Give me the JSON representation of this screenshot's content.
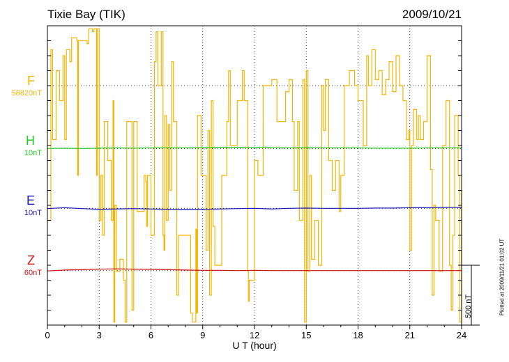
{
  "header": {
    "station": "Tixie Bay (TIK)",
    "date": "2009/10/21"
  },
  "components": [
    {
      "name": "F",
      "scale": "58820nT",
      "color": "#f5b400"
    },
    {
      "name": "H",
      "scale": "10nT",
      "color": "#22cc22"
    },
    {
      "name": "E",
      "scale": "10nT",
      "color": "#1a1ab8"
    },
    {
      "name": "Z",
      "scale": "60nT",
      "color": "#cc1111"
    }
  ],
  "scale_bar": "500 nT",
  "plotted_note": "Plotted at 2009/11/21 01:02 UT",
  "chart_data": {
    "type": "line",
    "xlabel": "U T (hour)",
    "x_ticks": [
      "0",
      "3",
      "6",
      "9",
      "12",
      "15",
      "18",
      "21",
      "24"
    ],
    "xlim": [
      0,
      24
    ],
    "grid": true,
    "series": [
      {
        "name": "H",
        "color": "#22cc22",
        "baseline_y_frac": 0.41,
        "values": [
          [
            0,
            0.41
          ],
          [
            1,
            0.409
          ],
          [
            2,
            0.41
          ],
          [
            3,
            0.409
          ],
          [
            4,
            0.408
          ],
          [
            5,
            0.409
          ],
          [
            6,
            0.408
          ],
          [
            7,
            0.408
          ],
          [
            8,
            0.408
          ],
          [
            9,
            0.407
          ],
          [
            10,
            0.406
          ],
          [
            11,
            0.406
          ],
          [
            12,
            0.407
          ],
          [
            12.6,
            0.405
          ],
          [
            13,
            0.407
          ],
          [
            14,
            0.408
          ],
          [
            15,
            0.407
          ],
          [
            16,
            0.408
          ],
          [
            17,
            0.408
          ],
          [
            18,
            0.408
          ],
          [
            19,
            0.409
          ],
          [
            20,
            0.409
          ],
          [
            21,
            0.409
          ],
          [
            22,
            0.408
          ],
          [
            23,
            0.408
          ],
          [
            24,
            0.408
          ]
        ]
      },
      {
        "name": "E",
        "color": "#1a1ab8",
        "baseline_y_frac": 0.61,
        "values": [
          [
            0,
            0.611
          ],
          [
            1,
            0.608
          ],
          [
            2,
            0.611
          ],
          [
            3,
            0.613
          ],
          [
            4,
            0.612
          ],
          [
            5,
            0.611
          ],
          [
            6,
            0.612
          ],
          [
            7,
            0.613
          ],
          [
            8,
            0.613
          ],
          [
            9,
            0.613
          ],
          [
            10,
            0.612
          ],
          [
            11,
            0.611
          ],
          [
            12,
            0.61
          ],
          [
            13,
            0.612
          ],
          [
            14,
            0.61
          ],
          [
            15,
            0.609
          ],
          [
            16,
            0.61
          ],
          [
            17,
            0.61
          ],
          [
            18,
            0.61
          ],
          [
            19,
            0.609
          ],
          [
            20,
            0.609
          ],
          [
            21,
            0.608
          ],
          [
            22,
            0.608
          ],
          [
            23,
            0.607
          ],
          [
            24,
            0.607
          ]
        ]
      },
      {
        "name": "Z",
        "color": "#cc1111",
        "baseline_y_frac": 0.818,
        "values": [
          [
            0,
            0.819
          ],
          [
            1,
            0.816
          ],
          [
            2,
            0.815
          ],
          [
            3,
            0.813
          ],
          [
            4,
            0.812
          ],
          [
            5,
            0.813
          ],
          [
            6,
            0.814
          ],
          [
            7,
            0.815
          ],
          [
            8,
            0.816
          ],
          [
            9,
            0.817
          ],
          [
            10,
            0.817
          ],
          [
            11,
            0.818
          ],
          [
            12,
            0.817
          ],
          [
            13,
            0.818
          ],
          [
            14,
            0.818
          ],
          [
            15,
            0.818
          ],
          [
            16,
            0.818
          ],
          [
            17,
            0.818
          ],
          [
            18,
            0.818
          ],
          [
            19,
            0.818
          ],
          [
            20,
            0.818
          ],
          [
            21,
            0.818
          ],
          [
            22,
            0.818
          ],
          [
            23,
            0.818
          ],
          [
            24,
            0.818
          ]
        ]
      },
      {
        "name": "F",
        "color": "#f5b400",
        "baseline_y_frac": 0.2,
        "values": [
          [
            0,
            0.65
          ],
          [
            0.2,
            0.08
          ],
          [
            0.3,
            0.38
          ],
          [
            0.5,
            0.15
          ],
          [
            0.7,
            0.25
          ],
          [
            0.9,
            0.1
          ],
          [
            1.0,
            0.38
          ],
          [
            1.1,
            0.08
          ],
          [
            1.3,
            0.12
          ],
          [
            1.4,
            0.04
          ],
          [
            1.7,
            0.05
          ],
          [
            1.75,
            0.5
          ],
          [
            1.8,
            0.05
          ],
          [
            2.3,
            0.06
          ],
          [
            2.4,
            0.01
          ],
          [
            2.6,
            0.02
          ],
          [
            2.7,
            0.01
          ],
          [
            2.85,
            0.5
          ],
          [
            2.9,
            0.01
          ],
          [
            3.0,
            0.65
          ],
          [
            3.1,
            0.5
          ],
          [
            3.2,
            0.7
          ],
          [
            3.3,
            0.32
          ],
          [
            3.5,
            0.45
          ],
          [
            3.7,
            0.65
          ],
          [
            3.8,
            0.25
          ],
          [
            3.85,
            0.99
          ],
          [
            3.9,
            0.6
          ],
          [
            4.0,
            0.82
          ],
          [
            4.2,
            0.78
          ],
          [
            4.4,
            0.85
          ],
          [
            4.5,
            0.99
          ],
          [
            4.6,
            0.32
          ],
          [
            4.75,
            0.32
          ],
          [
            4.9,
            0.95
          ],
          [
            5.0,
            0.32
          ],
          [
            5.2,
            0.62
          ],
          [
            5.5,
            0.62
          ],
          [
            5.6,
            0.5
          ],
          [
            5.7,
            0.52
          ],
          [
            5.75,
            0.67
          ],
          [
            5.8,
            0.5
          ],
          [
            6.0,
            0.7
          ],
          [
            6.2,
            0.12
          ],
          [
            6.3,
            0.02
          ],
          [
            6.4,
            0.2
          ],
          [
            6.6,
            0.02
          ],
          [
            6.7,
            0.7
          ],
          [
            6.75,
            0.75
          ],
          [
            6.8,
            0.3
          ],
          [
            6.9,
            0.65
          ],
          [
            7.0,
            0.33
          ],
          [
            7.1,
            0.55
          ],
          [
            7.2,
            0.12
          ],
          [
            7.3,
            0.32
          ],
          [
            7.5,
            0.9
          ],
          [
            7.6,
            0.7
          ],
          [
            8.3,
            0.96
          ],
          [
            8.4,
            0.99
          ],
          [
            8.6,
            0.68
          ],
          [
            8.65,
            0.96
          ],
          [
            8.7,
            0.3
          ],
          [
            8.9,
            0.5
          ],
          [
            9.1,
            0.5
          ],
          [
            9.2,
            0.75
          ],
          [
            9.3,
            0.35
          ],
          [
            9.4,
            0.9
          ],
          [
            9.5,
            0.25
          ],
          [
            9.6,
            0.67
          ],
          [
            9.7,
            0.8
          ],
          [
            9.9,
            0.8
          ],
          [
            10.1,
            0.5
          ],
          [
            10.4,
            0.32
          ],
          [
            10.5,
            0.15
          ],
          [
            10.6,
            0.4
          ],
          [
            11.0,
            0.25
          ],
          [
            11.3,
            0.15
          ],
          [
            11.4,
            0.25
          ],
          [
            11.6,
            0.82
          ],
          [
            11.65,
            0.92
          ],
          [
            11.7,
            0.85
          ],
          [
            11.8,
            0.85
          ],
          [
            12.0,
            0.45
          ],
          [
            12.2,
            0.5
          ],
          [
            12.5,
            0.2
          ],
          [
            13.0,
            0.18
          ],
          [
            13.3,
            0.32
          ],
          [
            13.6,
            0.32
          ],
          [
            13.8,
            0.22
          ],
          [
            14.0,
            0.18
          ],
          [
            14.2,
            0.32
          ],
          [
            14.3,
            0.55
          ],
          [
            14.5,
            0.32
          ],
          [
            14.6,
            0.65
          ],
          [
            14.8,
            0.18
          ],
          [
            14.9,
            0.99
          ],
          [
            15.0,
            0.15
          ],
          [
            15.1,
            0.82
          ],
          [
            15.2,
            0.5
          ],
          [
            15.3,
            0.78
          ],
          [
            15.5,
            0.65
          ],
          [
            15.7,
            0.8
          ],
          [
            15.9,
            0.2
          ],
          [
            16.0,
            0.35
          ],
          [
            16.1,
            0.18
          ],
          [
            16.3,
            0.45
          ],
          [
            16.5,
            0.55
          ],
          [
            16.7,
            0.45
          ],
          [
            16.9,
            0.62
          ],
          [
            17.0,
            0.5
          ],
          [
            17.2,
            0.2
          ],
          [
            17.5,
            0.15
          ],
          [
            17.8,
            0.2
          ],
          [
            18.0,
            0.25
          ],
          [
            18.3,
            0.4
          ],
          [
            18.5,
            0.1
          ],
          [
            18.6,
            0.2
          ],
          [
            18.8,
            0.08
          ],
          [
            19.0,
            0.18
          ],
          [
            19.2,
            0.15
          ],
          [
            19.4,
            0.23
          ],
          [
            19.6,
            0.18
          ],
          [
            19.8,
            0.12
          ],
          [
            20.0,
            0.22
          ],
          [
            20.2,
            0.1
          ],
          [
            20.4,
            0.2
          ],
          [
            20.6,
            0.25
          ],
          [
            20.8,
            0.38
          ],
          [
            20.95,
            0.35
          ],
          [
            21.0,
            0.75
          ],
          [
            21.1,
            0.4
          ],
          [
            21.2,
            0.28
          ],
          [
            21.4,
            0.38
          ],
          [
            21.5,
            0.3
          ],
          [
            21.6,
            0.38
          ],
          [
            21.8,
            0.32
          ],
          [
            22.0,
            0.1
          ],
          [
            22.2,
            0.48
          ],
          [
            22.3,
            0.9
          ],
          [
            22.4,
            0.6
          ],
          [
            22.5,
            0.65
          ],
          [
            22.7,
            0.82
          ],
          [
            22.9,
            0.4
          ],
          [
            23.1,
            0.25
          ],
          [
            23.3,
            0.8
          ],
          [
            23.4,
            0.95
          ],
          [
            23.5,
            0.7
          ],
          [
            23.6,
            0.3
          ],
          [
            23.8,
            0.5
          ],
          [
            23.9,
            0.99
          ],
          [
            24.0,
            0.55
          ]
        ]
      }
    ]
  }
}
